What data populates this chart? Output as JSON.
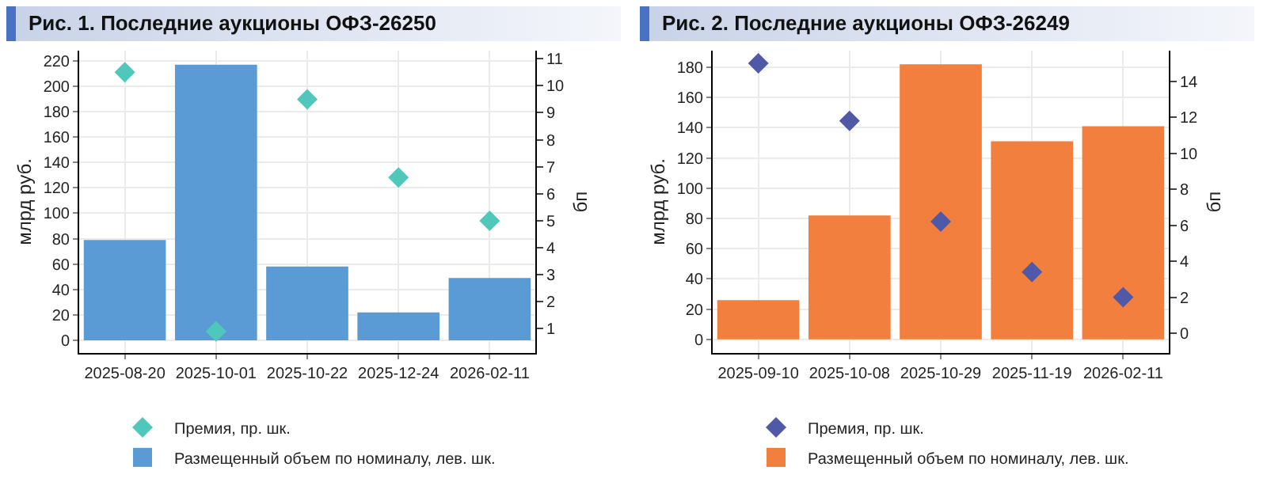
{
  "chart_data": [
    {
      "type": "bar",
      "title": "Рис. 1. Последние аукционы ОФЗ-26250",
      "ylabel": "млрд руб.",
      "y2label": "бп",
      "categories": [
        "2025-08-20",
        "2025-10-01",
        "2025-10-22",
        "2025-12-24",
        "2026-02-11"
      ],
      "series": [
        {
          "name": "Премия, пр. шк.",
          "type": "scatter",
          "axis": "y2",
          "marker": "diamond",
          "color": "#4fc8bb",
          "values": [
            10.5,
            0.9,
            9.5,
            6.6,
            5.0
          ]
        },
        {
          "name": "Размещенный объем по номиналу, лев. шк.",
          "color": "#5b9bd5",
          "values": [
            79,
            217,
            58,
            22,
            49
          ]
        }
      ],
      "ylim": [
        -10,
        228
      ],
      "yticks": [
        0,
        20,
        40,
        60,
        80,
        100,
        120,
        140,
        160,
        180,
        200,
        220
      ],
      "y2lim": [
        0.1,
        11.3
      ],
      "y2ticks": [
        1,
        2,
        3,
        4,
        5,
        6,
        7,
        8,
        9,
        10,
        11
      ],
      "grid": true,
      "legend": "bottom"
    },
    {
      "type": "bar",
      "title": "Рис. 2. Последние аукционы ОФЗ-26249",
      "ylabel": "млрд руб.",
      "y2label": "бп",
      "categories": [
        "2025-09-10",
        "2025-10-08",
        "2025-10-29",
        "2025-11-19",
        "2026-02-11"
      ],
      "series": [
        {
          "name": "Премия, пр. шк.",
          "type": "scatter",
          "axis": "y2",
          "marker": "diamond",
          "color": "#5058a8",
          "values": [
            15.0,
            11.8,
            6.2,
            3.4,
            2.0
          ]
        },
        {
          "name": "Размещенный объем по номиналу, лев. шк.",
          "color": "#f27f3d",
          "values": [
            26,
            82,
            182,
            131,
            141
          ]
        }
      ],
      "ylim": [
        -9,
        191
      ],
      "yticks": [
        0,
        20,
        40,
        60,
        80,
        100,
        120,
        140,
        160,
        180
      ],
      "y2lim": [
        -1.1,
        15.7
      ],
      "y2ticks": [
        0,
        2,
        4,
        6,
        8,
        10,
        12,
        14
      ],
      "grid": true,
      "legend": "bottom"
    }
  ]
}
